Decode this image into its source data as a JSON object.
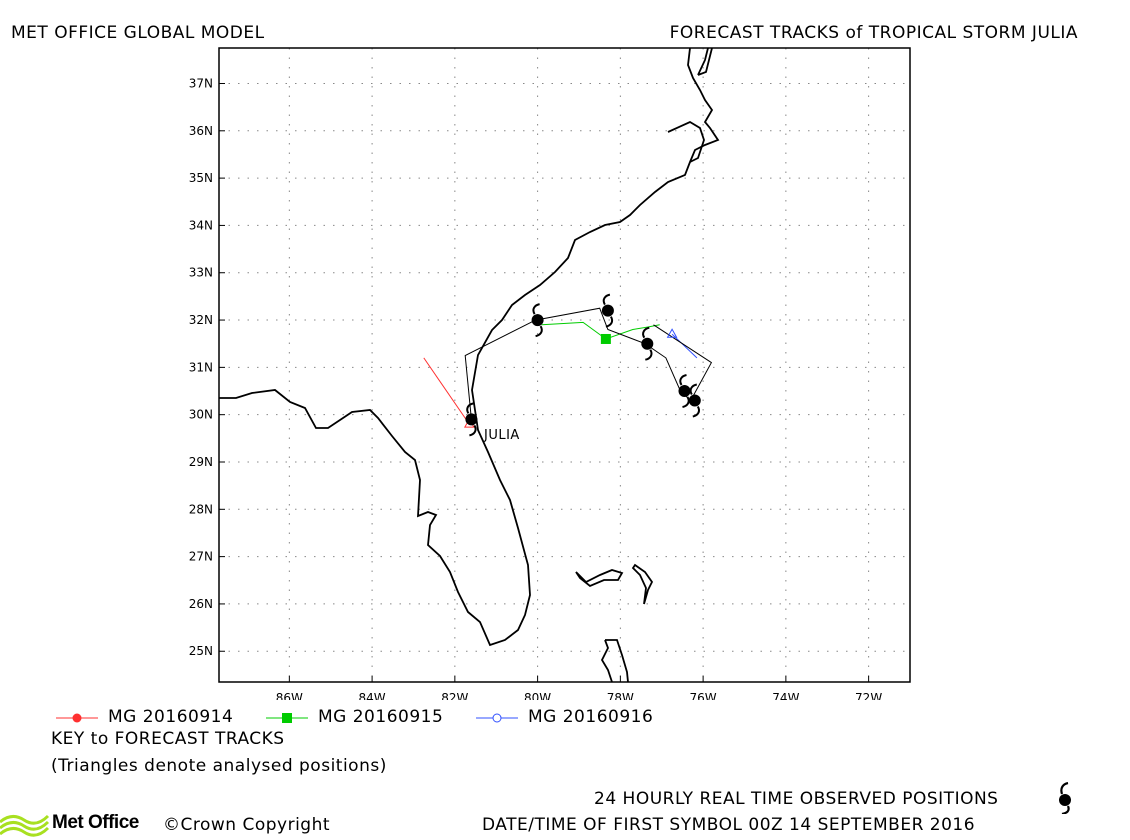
{
  "header": {
    "left_title": "MET OFFICE GLOBAL MODEL",
    "right_title": "FORECAST TRACKS of TROPICAL STORM JULIA"
  },
  "map": {
    "lon_range": [
      -87.7,
      -71.0
    ],
    "lat_range": [
      24.35,
      37.75
    ],
    "lon_ticks": [
      "86W",
      "84W",
      "82W",
      "80W",
      "78W",
      "76W",
      "74W",
      "72W"
    ],
    "lat_ticks": [
      "37N",
      "36N",
      "35N",
      "34N",
      "33N",
      "32N",
      "31N",
      "30N",
      "29N",
      "28N",
      "27N",
      "26N",
      "25N"
    ],
    "grid": "dotted",
    "storm_label": "JULIA"
  },
  "legend": [
    {
      "label": "MG 20160914",
      "color": "#ff3030",
      "marker": "filled-circle"
    },
    {
      "label": "MG 20160915",
      "color": "#00cc00",
      "marker": "filled-square"
    },
    {
      "label": "MG 20160916",
      "color": "#3050ff",
      "marker": "open-circle"
    }
  ],
  "key": {
    "title": "KEY to FORECAST TRACKS",
    "note": "(Triangles denote analysed positions)"
  },
  "footer": {
    "observed_label": "24 HOURLY REAL TIME OBSERVED POSITIONS",
    "datetime_label": "DATE/TIME OF FIRST SYMBOL 00Z 14 SEPTEMBER 2016",
    "logo": "Met Office",
    "copyright": "©Crown Copyright"
  },
  "chart_data": {
    "type": "map-tracks",
    "tracks": [
      {
        "name": "MG 20160914",
        "color": "#ff3030",
        "points": [
          [
            -82.75,
            31.2
          ],
          [
            -81.65,
            29.8
          ]
        ]
      },
      {
        "name": "MG 20160915",
        "color": "#00cc00",
        "points": [
          [
            -79.9,
            31.9
          ],
          [
            -78.9,
            31.95
          ],
          [
            -78.35,
            31.6
          ],
          [
            -77.7,
            31.8
          ],
          [
            -77.35,
            31.85
          ],
          [
            -77.05,
            31.9
          ]
        ]
      },
      {
        "name": "MG 20160916",
        "color": "#3050ff",
        "points": [
          [
            -76.75,
            31.7
          ],
          [
            -76.15,
            31.2
          ]
        ]
      },
      {
        "name": "observed",
        "color": "#000000",
        "points": [
          [
            -81.6,
            29.9
          ],
          [
            -81.75,
            31.25
          ],
          [
            -80.05,
            32.0
          ],
          [
            -78.5,
            32.25
          ],
          [
            -78.3,
            31.8
          ],
          [
            -77.4,
            31.5
          ],
          [
            -76.9,
            31.2
          ],
          [
            -76.55,
            30.5
          ],
          [
            -76.3,
            30.3
          ],
          [
            -75.8,
            31.1
          ],
          [
            -77.2,
            31.9
          ]
        ]
      }
    ],
    "observed_positions": [
      [
        -81.6,
        29.9
      ],
      [
        -80.0,
        32.0
      ],
      [
        -78.3,
        32.2
      ],
      [
        -77.35,
        31.5
      ],
      [
        -76.45,
        30.5
      ],
      [
        -76.2,
        30.3
      ]
    ],
    "analysed_positions": [
      [
        -81.65,
        29.8
      ],
      [
        -76.75,
        31.7
      ]
    ],
    "legend_model_points": [
      [
        -78.35,
        31.6
      ]
    ]
  }
}
